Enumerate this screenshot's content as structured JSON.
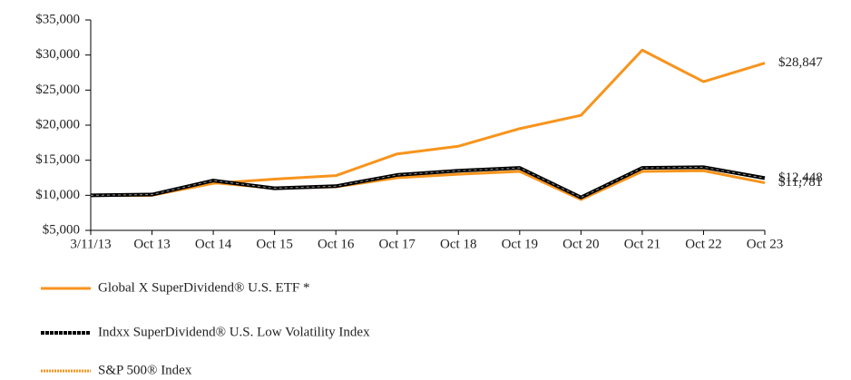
{
  "chart_data": {
    "type": "line",
    "categories": [
      "3/11/13",
      "Oct 13",
      "Oct 14",
      "Oct 15",
      "Oct 16",
      "Oct 17",
      "Oct 18",
      "Oct 19",
      "Oct 20",
      "Oct 21",
      "Oct 22",
      "Oct 23"
    ],
    "series": [
      {
        "name": "Global X SuperDividend® U.S. ETF *",
        "color": "#f7941d",
        "style": "solid",
        "values": [
          10000,
          10000,
          11800,
          11000,
          11200,
          12500,
          13000,
          13400,
          9400,
          13400,
          13500,
          11781
        ],
        "end_label": "$11,781"
      },
      {
        "name": "Indxx SuperDividend® U.S. Low Volatility Index",
        "color": "#000000",
        "style": "dashed",
        "values": [
          10000,
          10100,
          12100,
          11000,
          11300,
          12900,
          13500,
          13900,
          9700,
          13900,
          14000,
          12448
        ],
        "end_label": "$12,448"
      },
      {
        "name": "S&P 500® Index",
        "color": "#f7941d",
        "style": "dotted",
        "values": [
          10000,
          10000,
          11700,
          12300,
          12800,
          15900,
          17000,
          19500,
          21400,
          30700,
          26200,
          28847
        ],
        "end_label": "$28,847"
      }
    ],
    "ylim": [
      5000,
      35000
    ],
    "yticks": [
      {
        "value": 5000,
        "label": "$5,000"
      },
      {
        "value": 10000,
        "label": "$10,000"
      },
      {
        "value": 15000,
        "label": "$15,000"
      },
      {
        "value": 20000,
        "label": "$20,000"
      },
      {
        "value": 25000,
        "label": "$25,000"
      },
      {
        "value": 30000,
        "label": "$30,000"
      },
      {
        "value": 35000,
        "label": "$35,000"
      }
    ],
    "grid": false
  }
}
